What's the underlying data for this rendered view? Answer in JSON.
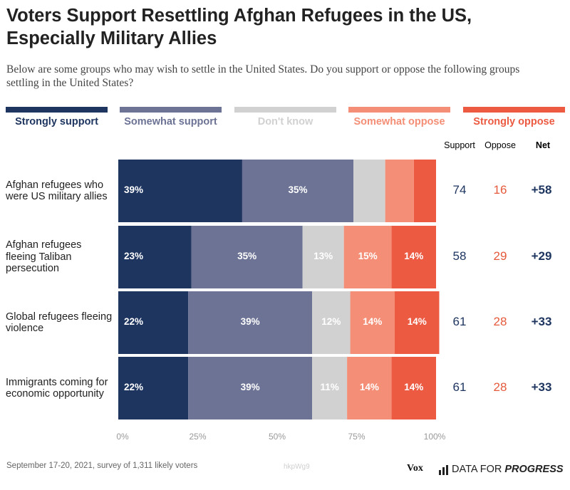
{
  "title": "Voters Support Resettling Afghan Refugees in the US, Especially Military Allies",
  "subtitle": "Below are some groups who may wish to settle in the United States. Do you support or oppose the following groups settling in the United States?",
  "colors": {
    "strongly_support": "#1e3560",
    "somewhat_support": "#6c7395",
    "dont_know": "#d1d1d1",
    "somewhat_oppose": "#f48e76",
    "strongly_oppose": "#ec5a42",
    "support_text": "#1e3560",
    "oppose_text": "#e5593c"
  },
  "column_headers": {
    "support": "Support",
    "oppose": "Oppose",
    "net": "Net"
  },
  "chart_data": {
    "type": "bar",
    "orientation": "horizontal",
    "stacked": true,
    "categories": [
      "Afghan refugees who were US military allies",
      "Afghan refugees fleeing Taliban persecution",
      "Global refugees fleeing violence",
      "Immigrants coming for economic opportunity"
    ],
    "series": [
      {
        "name": "Strongly support",
        "values": [
          39,
          23,
          22,
          22
        ],
        "labels": [
          "39%",
          "23%",
          "22%",
          "22%"
        ]
      },
      {
        "name": "Somewhat support",
        "values": [
          35,
          35,
          39,
          39
        ],
        "labels": [
          "35%",
          "35%",
          "39%",
          "39%"
        ]
      },
      {
        "name": "Don't know",
        "values": [
          10,
          13,
          12,
          11
        ],
        "labels": [
          "",
          "13%",
          "12%",
          "11%"
        ]
      },
      {
        "name": "Somewhat oppose",
        "values": [
          9,
          15,
          14,
          14
        ],
        "labels": [
          "",
          "15%",
          "14%",
          "14%"
        ]
      },
      {
        "name": "Strongly oppose",
        "values": [
          7,
          14,
          14,
          14
        ],
        "labels": [
          "",
          "14%",
          "14%",
          "14%"
        ]
      }
    ],
    "support": [
      "74",
      "58",
      "61",
      "61"
    ],
    "oppose": [
      "16",
      "29",
      "28",
      "28"
    ],
    "net": [
      "+58",
      "+29",
      "+33",
      "+33"
    ],
    "xticks": [
      "0%",
      "25%",
      "50%",
      "75%",
      "100%"
    ],
    "xlim": [
      0,
      100
    ],
    "legend_position": "top"
  },
  "footer": {
    "source": "September 17-20, 2021, survey of 1,311 likely voters",
    "watermark": "hkpWg9",
    "vox": "Vox",
    "dfp_regular": "DATA FOR",
    "dfp_bold": "PROGRESS"
  }
}
